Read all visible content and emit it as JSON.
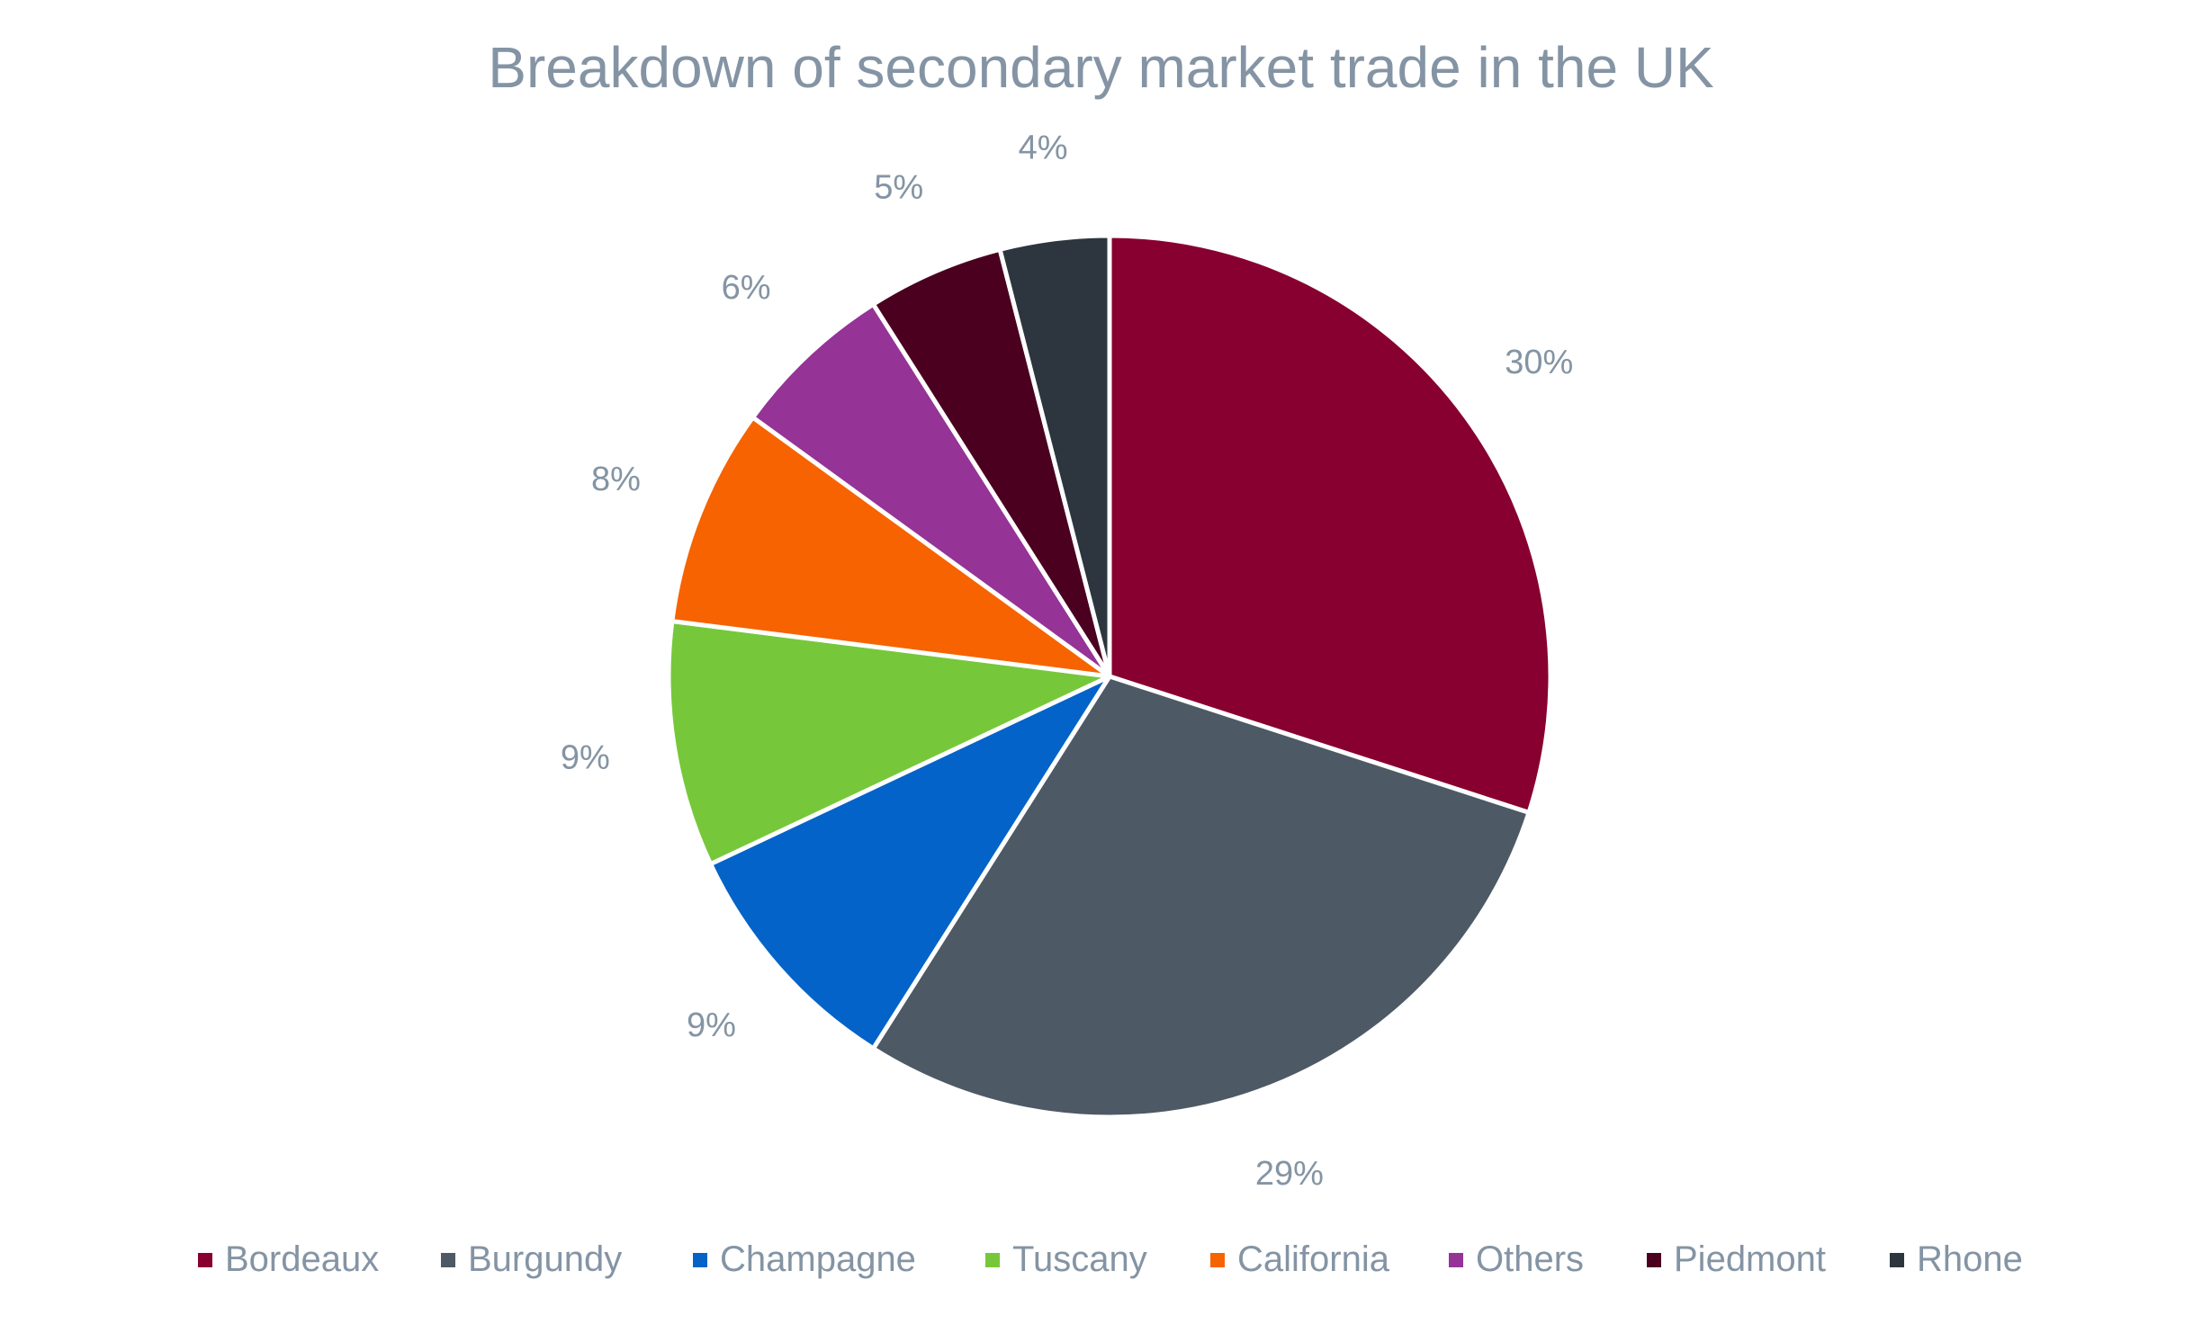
{
  "chart_data": {
    "type": "pie",
    "title": "Breakdown of secondary market trade in the UK",
    "categories": [
      "Bordeaux",
      "Burgundy",
      "Champagne",
      "Tuscany",
      "California",
      "Others",
      "Piedmont",
      "Rhone"
    ],
    "values": [
      30,
      29,
      9,
      9,
      8,
      6,
      5,
      4
    ],
    "labels": [
      "30%",
      "29%",
      "9%",
      "9%",
      "8%",
      "6%",
      "5%",
      "4%"
    ],
    "colors": [
      "#870030",
      "#4d5965",
      "#0363c8",
      "#76c83a",
      "#f76300",
      "#953396",
      "#4b0020",
      "#2d353e"
    ],
    "legend_position": "bottom",
    "start_angle": "top, clockwise"
  }
}
